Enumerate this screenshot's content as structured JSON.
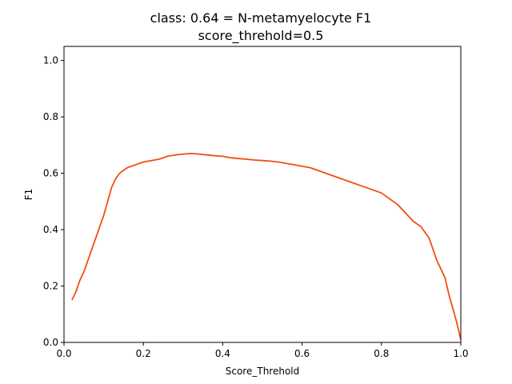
{
  "chart_data": {
    "type": "line",
    "title": "class: 0.64 = N-metamyelocyte F1",
    "subtitle": "score_threhold=0.5",
    "xlabel": "Score_Threhold",
    "ylabel": "F1",
    "xlim": [
      0.0,
      1.0
    ],
    "ylim": [
      0.0,
      1.05
    ],
    "xticks": [
      "0.0",
      "0.2",
      "0.4",
      "0.6",
      "0.8",
      "1.0"
    ],
    "yticks": [
      "0.0",
      "0.2",
      "0.4",
      "0.6",
      "0.8",
      "1.0"
    ],
    "grid": false,
    "legend": "none",
    "series": [
      {
        "color": "#f04e12",
        "x": [
          0.02,
          0.03,
          0.04,
          0.05,
          0.06,
          0.07,
          0.08,
          0.09,
          0.1,
          0.11,
          0.12,
          0.13,
          0.14,
          0.15,
          0.16,
          0.17,
          0.18,
          0.19,
          0.2,
          0.22,
          0.24,
          0.26,
          0.28,
          0.3,
          0.32,
          0.34,
          0.36,
          0.38,
          0.4,
          0.42,
          0.44,
          0.46,
          0.48,
          0.5,
          0.52,
          0.54,
          0.56,
          0.58,
          0.6,
          0.62,
          0.64,
          0.66,
          0.68,
          0.7,
          0.72,
          0.74,
          0.76,
          0.78,
          0.8,
          0.82,
          0.84,
          0.86,
          0.88,
          0.9,
          0.91,
          0.92,
          0.93,
          0.94,
          0.95,
          0.96,
          0.97,
          0.98,
          0.99,
          1.0
        ],
        "y": [
          0.15,
          0.18,
          0.22,
          0.25,
          0.29,
          0.33,
          0.37,
          0.41,
          0.45,
          0.5,
          0.55,
          0.58,
          0.6,
          0.61,
          0.62,
          0.625,
          0.63,
          0.635,
          0.64,
          0.645,
          0.65,
          0.66,
          0.665,
          0.668,
          0.67,
          0.668,
          0.665,
          0.662,
          0.66,
          0.655,
          0.652,
          0.65,
          0.647,
          0.645,
          0.643,
          0.64,
          0.635,
          0.63,
          0.625,
          0.62,
          0.61,
          0.6,
          0.59,
          0.58,
          0.57,
          0.56,
          0.55,
          0.54,
          0.53,
          0.51,
          0.49,
          0.46,
          0.43,
          0.41,
          0.39,
          0.37,
          0.33,
          0.29,
          0.26,
          0.23,
          0.17,
          0.12,
          0.07,
          0.01
        ]
      }
    ]
  }
}
